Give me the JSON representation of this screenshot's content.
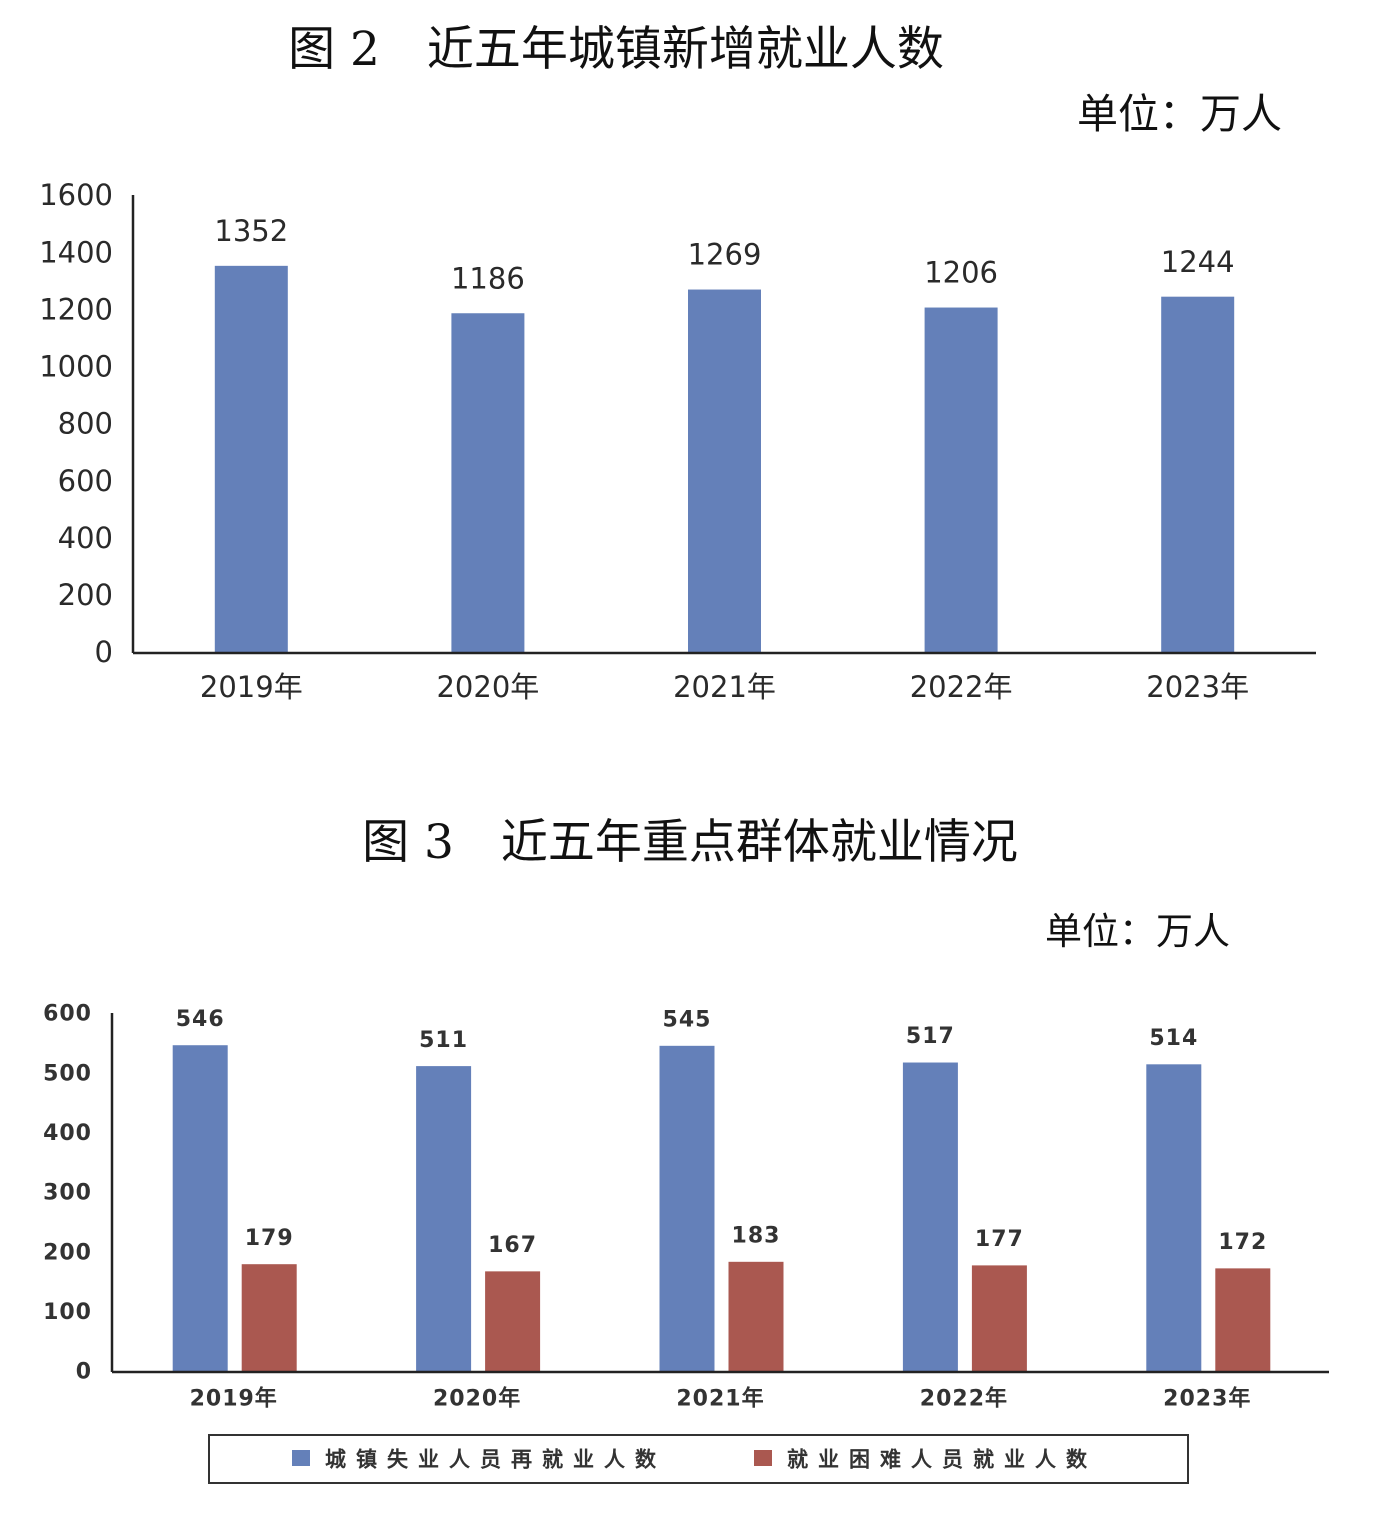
{
  "chart_data": [
    {
      "type": "bar",
      "title": "图 2　近五年城镇新增就业人数",
      "unit": "单位：万人",
      "categories": [
        "2019年",
        "2020年",
        "2021年",
        "2022年",
        "2023年"
      ],
      "values": [
        1352,
        1186,
        1269,
        1206,
        1244
      ],
      "ylim": [
        0,
        1600
      ],
      "yticks": [
        0,
        200,
        400,
        600,
        800,
        1000,
        1200,
        1400,
        1600
      ],
      "data_labels": true,
      "grid": false,
      "color": "#6480b9"
    },
    {
      "type": "bar",
      "title": "图 3　近五年重点群体就业情况",
      "unit": "单位：万人",
      "categories": [
        "2019年",
        "2020年",
        "2021年",
        "2022年",
        "2023年"
      ],
      "series": [
        {
          "name": "城镇失业人员再就业人数",
          "values": [
            546,
            511,
            545,
            517,
            514
          ],
          "color": "#6480b9"
        },
        {
          "name": "就业困难人员就业人数",
          "values": [
            179,
            167,
            183,
            177,
            172
          ],
          "color": "#aa5850"
        }
      ],
      "ylim": [
        0,
        600
      ],
      "yticks": [
        0,
        100,
        200,
        300,
        400,
        500,
        600
      ],
      "data_labels": true,
      "grid": false,
      "legend": "bottom"
    }
  ]
}
